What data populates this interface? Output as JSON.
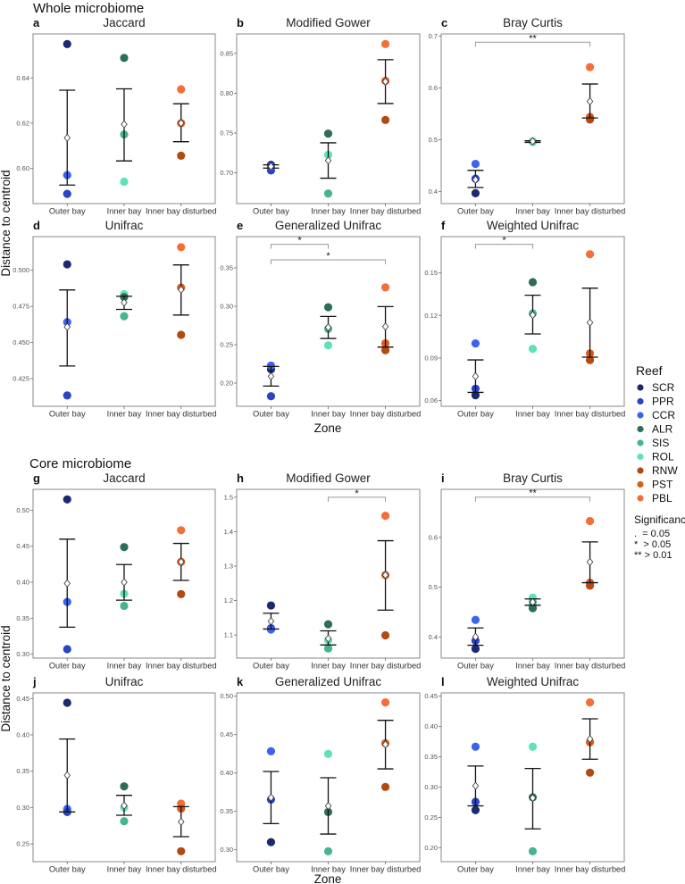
{
  "sections": [
    "Whole microbiome",
    "Core microbiome"
  ],
  "ylabel": "Distance to centroid",
  "xlabel": "Zone",
  "zones": [
    "Outer bay",
    "Inner bay",
    "Inner bay disturbed"
  ],
  "legend": {
    "title": "Reef",
    "reefs": [
      "SCR",
      "PPR",
      "CCR",
      "ALR",
      "SIS",
      "ROL",
      "RNW",
      "PST",
      "PBL"
    ],
    "colors": {
      "SCR": "#1b2a6e",
      "PPR": "#2a44c2",
      "CCR": "#3b63f2",
      "ALR": "#2e6d58",
      "SIS": "#46b490",
      "ROL": "#5fe3b3",
      "RNW": "#b24a12",
      "PST": "#d85c1c",
      "PBL": "#f46e3a"
    },
    "significance_title": "Significance",
    "significance": [
      ".  = 0.05",
      "*  > 0.05",
      "** > 0.01"
    ]
  },
  "chart_data": [
    {
      "type": "scatter",
      "letter": "a",
      "title": "Jaccard",
      "section": 0,
      "ylim": [
        0.5844,
        0.6595
      ],
      "ticks": [
        "0.60",
        "0.62",
        "0.64"
      ],
      "groups": [
        {
          "points": [
            {
              "reef": "SCR",
              "value": 0.655
            },
            {
              "reef": "PPR",
              "value": 0.5887
            },
            {
              "reef": "CCR",
              "value": 0.597
            }
          ],
          "mean": 0.6135,
          "err": [
            0.5926,
            0.6346
          ]
        },
        {
          "points": [
            {
              "reef": "ALR",
              "value": 0.6489
            },
            {
              "reef": "SIS",
              "value": 0.615
            },
            {
              "reef": "ROL",
              "value": 0.5941
            }
          ],
          "mean": 0.6195,
          "err": [
            0.6033,
            0.6352
          ]
        },
        {
          "points": [
            {
              "reef": "PBL",
              "value": 0.635
            },
            {
              "reef": "PST",
              "value": 0.62
            },
            {
              "reef": "RNW",
              "value": 0.6056
            }
          ],
          "mean": 0.62,
          "err": [
            0.6118,
            0.6286
          ]
        }
      ],
      "brackets": []
    },
    {
      "type": "scatter",
      "letter": "b",
      "title": "Modified Gower",
      "section": 0,
      "ylim": [
        0.6614,
        0.8744
      ],
      "ticks": [
        "0.70",
        "0.75",
        "0.80",
        "0.85"
      ],
      "groups": [
        {
          "points": [
            {
              "reef": "SCR",
              "value": 0.71
            },
            {
              "reef": "PPR",
              "value": 0.703
            },
            {
              "reef": "CCR",
              "value": 0.708
            }
          ],
          "mean": 0.708,
          "err": [
            0.706,
            0.71
          ]
        },
        {
          "points": [
            {
              "reef": "ALR",
              "value": 0.7493
            },
            {
              "reef": "SIS",
              "value": 0.674
            },
            {
              "reef": "ROL",
              "value": 0.7227
            }
          ],
          "mean": 0.7155,
          "err": [
            0.6933,
            0.7377
          ]
        },
        {
          "points": [
            {
              "reef": "PBL",
              "value": 0.8617
            },
            {
              "reef": "PST",
              "value": 0.8155
            },
            {
              "reef": "RNW",
              "value": 0.7664
            }
          ],
          "mean": 0.8145,
          "err": [
            0.787,
            0.842
          ]
        }
      ],
      "brackets": []
    },
    {
      "type": "scatter",
      "letter": "c",
      "title": "Bray Curtis",
      "section": 0,
      "ylim": [
        0.377,
        0.704
      ],
      "ticks": [
        "0.4",
        "0.5",
        "0.6",
        "0.7"
      ],
      "groups": [
        {
          "points": [
            {
              "reef": "CCR",
              "value": 0.4535
            },
            {
              "reef": "PPR",
              "value": 0.425
            },
            {
              "reef": "SCR",
              "value": 0.397
            }
          ],
          "mean": 0.423,
          "err": [
            0.408,
            0.441
          ]
        },
        {
          "points": [
            {
              "reef": "ALR",
              "value": 0.497
            },
            {
              "reef": "SIS",
              "value": 0.496
            },
            {
              "reef": "ROL",
              "value": 0.497
            }
          ],
          "mean": 0.497,
          "err": [
            0.495,
            0.498
          ]
        },
        {
          "points": [
            {
              "reef": "PBL",
              "value": 0.64
            },
            {
              "reef": "PST",
              "value": 0.544
            },
            {
              "reef": "RNW",
              "value": 0.539
            }
          ],
          "mean": 0.574,
          "err": [
            0.542,
            0.6075
          ]
        }
      ],
      "brackets": [
        {
          "from": 0,
          "to": 2,
          "y": 0.688,
          "label": "**"
        }
      ]
    },
    {
      "type": "scatter",
      "letter": "d",
      "title": "Unifrac",
      "section": 0,
      "ylim": [
        0.4058,
        0.5233
      ],
      "ticks": [
        "0.425",
        "0.450",
        "0.475",
        "0.500"
      ],
      "groups": [
        {
          "points": [
            {
              "reef": "SCR",
              "value": 0.5041
            },
            {
              "reef": "CCR",
              "value": 0.4641
            },
            {
              "reef": "PPR",
              "value": 0.4133
            }
          ],
          "mean": 0.4608,
          "err": [
            0.4337,
            0.4864
          ]
        },
        {
          "points": [
            {
              "reef": "ROL",
              "value": 0.4834
            },
            {
              "reef": "ALR",
              "value": 0.4814
            },
            {
              "reef": "SIS",
              "value": 0.4682
            }
          ],
          "mean": 0.4777,
          "err": [
            0.4729,
            0.482
          ]
        },
        {
          "points": [
            {
              "reef": "PBL",
              "value": 0.516
            },
            {
              "reef": "PST",
              "value": 0.488
            },
            {
              "reef": "RNW",
              "value": 0.4553
            }
          ],
          "mean": 0.4866,
          "err": [
            0.469,
            0.5037
          ]
        }
      ],
      "brackets": []
    },
    {
      "type": "scatter",
      "letter": "e",
      "title": "Generalized Unifrac",
      "section": 0,
      "ylim": [
        0.1698,
        0.3907
      ],
      "ticks": [
        "0.20",
        "0.25",
        "0.30",
        "0.35"
      ],
      "groups": [
        {
          "points": [
            {
              "reef": "SCR",
              "value": 0.218
            },
            {
              "reef": "CCR",
              "value": 0.2228
            },
            {
              "reef": "PPR",
              "value": 0.1829
            }
          ],
          "mean": 0.2089,
          "err": [
            0.1961,
            0.2217
          ]
        },
        {
          "points": [
            {
              "reef": "ALR",
              "value": 0.2988
            },
            {
              "reef": "SIS",
              "value": 0.2705
            },
            {
              "reef": "ROL",
              "value": 0.2492
            }
          ],
          "mean": 0.2725,
          "err": [
            0.2581,
            0.2868
          ]
        },
        {
          "points": [
            {
              "reef": "PBL",
              "value": 0.3246
            },
            {
              "reef": "PST",
              "value": 0.2517
            },
            {
              "reef": "RNW",
              "value": 0.2428
            }
          ],
          "mean": 0.2736,
          "err": [
            0.2469,
            0.2996
          ]
        }
      ],
      "brackets": [
        {
          "from": 0,
          "to": 1,
          "y": 0.3806,
          "label": "*"
        },
        {
          "from": 0,
          "to": 2,
          "y": 0.3605,
          "label": "*"
        }
      ]
    },
    {
      "type": "scatter",
      "letter": "f",
      "title": "Weighted Unifrac",
      "section": 0,
      "ylim": [
        0.056,
        0.1756
      ],
      "ticks": [
        "0.06",
        "0.09",
        "0.12",
        "0.15"
      ],
      "groups": [
        {
          "points": [
            {
              "reef": "CCR",
              "value": 0.1003
            },
            {
              "reef": "PPR",
              "value": 0.0684
            },
            {
              "reef": "SCR",
              "value": 0.0638
            }
          ],
          "mean": 0.0771,
          "err": [
            0.0658,
            0.0887
          ]
        },
        {
          "points": [
            {
              "reef": "ALR",
              "value": 0.1435
            },
            {
              "reef": "SIS",
              "value": 0.1215
            },
            {
              "reef": "ROL",
              "value": 0.0965
            }
          ],
          "mean": 0.1204,
          "err": [
            0.107,
            0.1343
          ]
        },
        {
          "points": [
            {
              "reef": "PBL",
              "value": 0.1632
            },
            {
              "reef": "PST",
              "value": 0.0932
            },
            {
              "reef": "RNW",
              "value": 0.0886
            }
          ],
          "mean": 0.115,
          "err": [
            0.0906,
            0.1393
          ]
        }
      ],
      "brackets": [
        {
          "from": 0,
          "to": 1,
          "y": 0.1702,
          "label": "*"
        }
      ]
    },
    {
      "type": "scatter",
      "letter": "g",
      "title": "Jaccard",
      "section": 1,
      "ylim": [
        0.2946,
        0.529
      ],
      "ticks": [
        "0.30",
        "0.35",
        "0.40",
        "0.45",
        "0.50"
      ],
      "groups": [
        {
          "points": [
            {
              "reef": "SCR",
              "value": 0.515
            },
            {
              "reef": "CCR",
              "value": 0.3726
            },
            {
              "reef": "PPR",
              "value": 0.307
            }
          ],
          "mean": 0.3983,
          "err": [
            0.3375,
            0.4598
          ]
        },
        {
          "points": [
            {
              "reef": "ALR",
              "value": 0.4488
            },
            {
              "reef": "ROL",
              "value": 0.384
            },
            {
              "reef": "SIS",
              "value": 0.3672
            }
          ],
          "mean": 0.4,
          "err": [
            0.3751,
            0.4245
          ]
        },
        {
          "points": [
            {
              "reef": "PBL",
              "value": 0.4722
            },
            {
              "reef": "PST",
              "value": 0.4282
            },
            {
              "reef": "RNW",
              "value": 0.3834
            }
          ],
          "mean": 0.4282,
          "err": [
            0.4025,
            0.4539
          ]
        }
      ],
      "brackets": []
    },
    {
      "type": "scatter",
      "letter": "h",
      "title": "Modified Gower",
      "section": 1,
      "ylim": [
        1.033,
        1.523
      ],
      "ticks": [
        "1.1",
        "1.2",
        "1.3",
        "1.4",
        "1.5"
      ],
      "groups": [
        {
          "points": [
            {
              "reef": "SCR",
              "value": 1.1858
            },
            {
              "reef": "PPR",
              "value": 1.12
            },
            {
              "reef": "CCR",
              "value": 1.116
            }
          ],
          "mean": 1.14,
          "err": [
            1.1174,
            1.1633
          ]
        },
        {
          "points": [
            {
              "reef": "ALR",
              "value": 1.1312
            },
            {
              "reef": "ROL",
              "value": 1.085
            },
            {
              "reef": "SIS",
              "value": 1.061
            }
          ],
          "mean": 1.0896,
          "err": [
            1.0711,
            1.112
          ]
        },
        {
          "points": [
            {
              "reef": "PBL",
              "value": 1.4462
            },
            {
              "reef": "PST",
              "value": 1.274
            },
            {
              "reef": "RNW",
              "value": 1.0991
            }
          ],
          "mean": 1.274,
          "err": [
            1.1724,
            1.3737
          ]
        }
      ],
      "brackets": [
        {
          "from": 1,
          "to": 2,
          "y": 1.5,
          "label": "*"
        }
      ]
    },
    {
      "type": "scatter",
      "letter": "i",
      "title": "Bray Curtis",
      "section": 1,
      "ylim": [
        0.3574,
        0.6967
      ],
      "ticks": [
        "0.4",
        "0.5",
        "0.6"
      ],
      "groups": [
        {
          "points": [
            {
              "reef": "CCR",
              "value": 0.4342
            },
            {
              "reef": "PPR",
              "value": 0.3922
            },
            {
              "reef": "SCR",
              "value": 0.376
            }
          ],
          "mean": 0.4,
          "err": [
            0.3832,
            0.418
          ]
        },
        {
          "points": [
            {
              "reef": "ROL",
              "value": 0.479
            },
            {
              "reef": "SIS",
              "value": 0.47
            },
            {
              "reef": "ALR",
              "value": 0.4577
            }
          ],
          "mean": 0.47,
          "err": [
            0.4637,
            0.4763
          ]
        },
        {
          "points": [
            {
              "reef": "PBL",
              "value": 0.633
            },
            {
              "reef": "PST",
              "value": 0.509
            },
            {
              "reef": "RNW",
              "value": 0.503
            }
          ],
          "mean": 0.5507,
          "err": [
            0.509,
            0.591
          ]
        }
      ],
      "brackets": [
        {
          "from": 0,
          "to": 2,
          "y": 0.681,
          "label": "**"
        }
      ]
    },
    {
      "type": "scatter",
      "letter": "j",
      "title": "Unifrac",
      "section": 1,
      "ylim": [
        0.2254,
        0.4578
      ],
      "ticks": [
        "0.25",
        "0.30",
        "0.35",
        "0.40",
        "0.45"
      ],
      "groups": [
        {
          "points": [
            {
              "reef": "SCR",
              "value": 0.4443
            },
            {
              "reef": "CCR",
              "value": 0.298
            },
            {
              "reef": "PPR",
              "value": 0.2938
            }
          ],
          "mean": 0.3443,
          "err": [
            0.2939,
            0.3943
          ]
        },
        {
          "points": [
            {
              "reef": "ALR",
              "value": 0.3291
            },
            {
              "reef": "ROL",
              "value": 0.3
            },
            {
              "reef": "SIS",
              "value": 0.2811
            }
          ],
          "mean": 0.3025,
          "err": [
            0.2893,
            0.3168
          ]
        },
        {
          "points": [
            {
              "reef": "PBL",
              "value": 0.3053
            },
            {
              "reef": "PST",
              "value": 0.2984
            },
            {
              "reef": "RNW",
              "value": 0.2398
            }
          ],
          "mean": 0.2803,
          "err": [
            0.2598,
            0.3012
          ]
        }
      ],
      "brackets": []
    },
    {
      "type": "scatter",
      "letter": "k",
      "title": "Generalized Unifrac",
      "section": 1,
      "ylim": [
        0.2845,
        0.5043
      ],
      "ticks": [
        "0.30",
        "0.35",
        "0.40",
        "0.45",
        "0.50"
      ],
      "groups": [
        {
          "points": [
            {
              "reef": "CCR",
              "value": 0.4283
            },
            {
              "reef": "PPR",
              "value": 0.3655
            },
            {
              "reef": "SCR",
              "value": 0.31
            }
          ],
          "mean": 0.3679,
          "err": [
            0.3341,
            0.402
          ]
        },
        {
          "points": [
            {
              "reef": "ROL",
              "value": 0.4248
            },
            {
              "reef": "ALR",
              "value": 0.3492
            },
            {
              "reef": "SIS",
              "value": 0.298
            }
          ],
          "mean": 0.357,
          "err": [
            0.3205,
            0.3938
          ]
        },
        {
          "points": [
            {
              "reef": "PBL",
              "value": 0.4919
            },
            {
              "reef": "PST",
              "value": 0.4388
            },
            {
              "reef": "RNW",
              "value": 0.3818
            }
          ],
          "mean": 0.4372,
          "err": [
            0.4054,
            0.4686
          ]
        }
      ],
      "brackets": []
    },
    {
      "type": "scatter",
      "letter": "l",
      "title": "Weighted Unifrac",
      "section": 1,
      "ylim": [
        0.1769,
        0.4554
      ],
      "ticks": [
        "0.20",
        "0.25",
        "0.30",
        "0.35",
        "0.40",
        "0.45"
      ],
      "groups": [
        {
          "points": [
            {
              "reef": "CCR",
              "value": 0.3666
            },
            {
              "reef": "PPR",
              "value": 0.2757
            },
            {
              "reef": "SCR",
              "value": 0.262
            }
          ],
          "mean": 0.302,
          "err": [
            0.269,
            0.3347
          ]
        },
        {
          "points": [
            {
              "reef": "ROL",
              "value": 0.3666
            },
            {
              "reef": "ALR",
              "value": 0.2831
            },
            {
              "reef": "SIS",
              "value": 0.1941
            }
          ],
          "mean": 0.2821,
          "err": [
            0.231,
            0.3307
          ]
        },
        {
          "points": [
            {
              "reef": "PBL",
              "value": 0.4397
            },
            {
              "reef": "PST",
              "value": 0.3739
            },
            {
              "reef": "RNW",
              "value": 0.3238
            }
          ],
          "mean": 0.3793,
          "err": [
            0.346,
            0.4127
          ]
        }
      ],
      "brackets": []
    }
  ]
}
